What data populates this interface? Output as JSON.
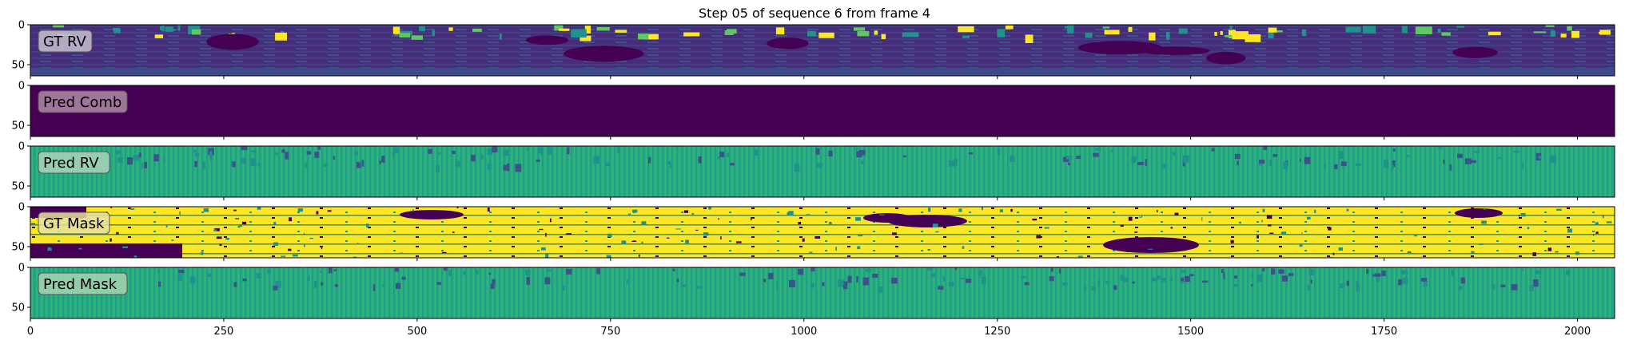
{
  "chart_data": {
    "type": "heatmap",
    "title": "Step 05 of sequence 6 from frame 4",
    "colormap": "viridis",
    "xlim": [
      0,
      2048
    ],
    "ylim": [
      64,
      0
    ],
    "x_ticks": [
      0,
      250,
      500,
      750,
      1000,
      1250,
      1500,
      1750,
      2000
    ],
    "y_ticks": [
      0,
      50
    ],
    "panels": [
      {
        "label": "GT RV",
        "style": "range",
        "label_bg": "#c8c0d0"
      },
      {
        "label": "Pred Comb",
        "style": "flat",
        "label_bg": "#b08aa8"
      },
      {
        "label": "Pred RV",
        "style": "stripes",
        "label_bg": "#a9d4b8"
      },
      {
        "label": "GT Mask",
        "style": "mask",
        "label_bg": "#e8e0a0"
      },
      {
        "label": "Pred Mask",
        "style": "stripes",
        "label_bg": "#a6d4b0"
      }
    ],
    "colors": {
      "viridis_dark": "#440154",
      "viridis_purple": "#472c7a",
      "viridis_blue": "#3b528b",
      "viridis_teal": "#21918c",
      "viridis_green": "#5ec962",
      "viridis_yellow": "#fde725"
    }
  }
}
